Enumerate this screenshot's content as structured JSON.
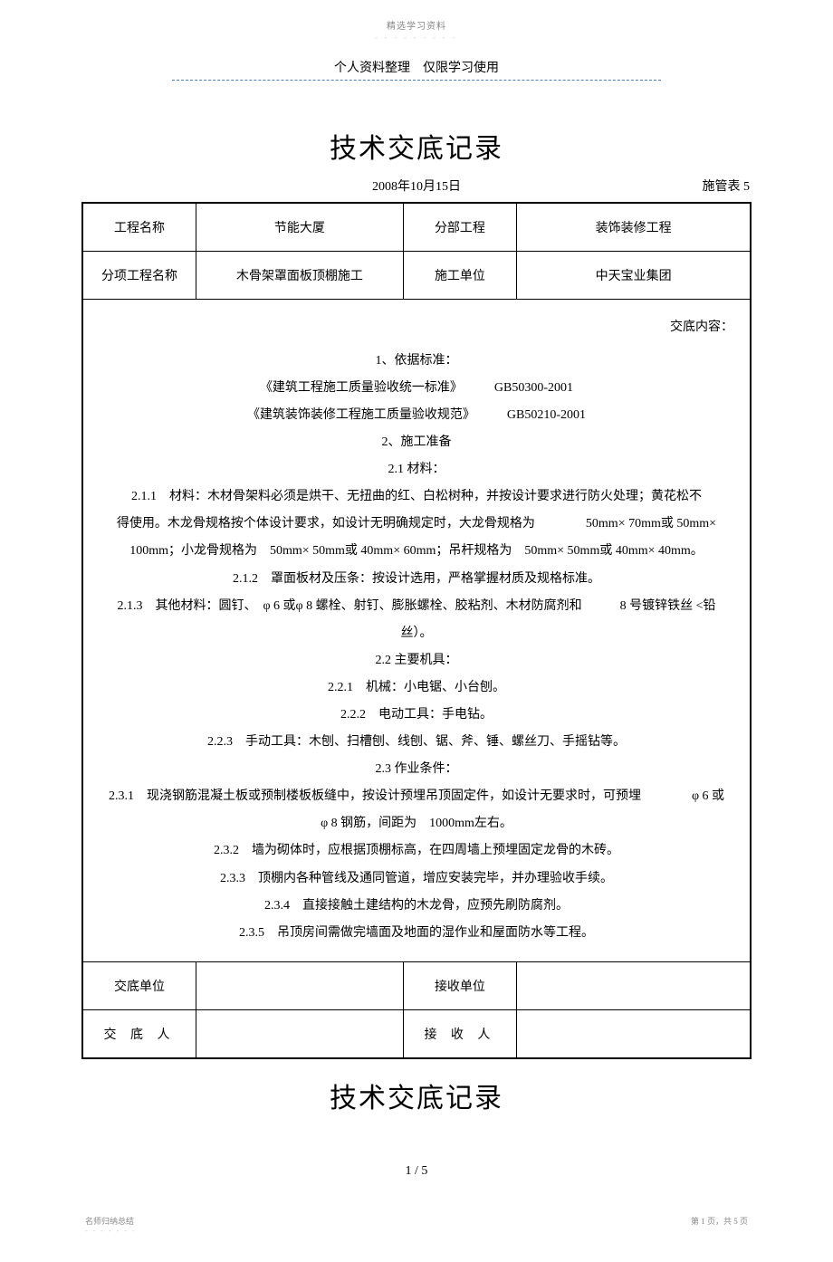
{
  "header": {
    "top_label": "精选学习资料",
    "dots": "- - - - - - - - -",
    "personal_note": "个人资料整理　仅限学习使用"
  },
  "main_title": "技术交底记录",
  "date_line": "2008年10月15日",
  "form_number": "施管表  5",
  "info_row1": {
    "label1": "工程名称",
    "value1": "节能大厦",
    "label2": "分部工程",
    "value2": "装饰装修工程"
  },
  "info_row2": {
    "label1": "分项工程名称",
    "value1": "木骨架罩面板顶棚施工",
    "label2": "施工单位",
    "value2": "中天宝业集团"
  },
  "content_label": "交底内容：",
  "content_lines": [
    "1、依据标准：",
    "《建筑工程施工质量验收统一标准》　　　GB50300-2001",
    "《建筑装饰装修工程施工质量验收规范》　　　GB50210-2001",
    "2、施工准备",
    "2.1  材料：",
    "2.1.1　材料：木材骨架料必须是烘干、无扭曲的红、白松树种，并按设计要求进行防火处理；黄花松不",
    "得使用。木龙骨规格按个体设计要求，如设计无明确规定时，大龙骨规格为　　　　50mm× 70mm或 50mm×",
    "100mm；小龙骨规格为　50mm× 50mm或 40mm× 60mm；吊杆规格为　50mm× 50mm或 40mm× 40mm。",
    "2.1.2　罩面板材及压条：按设计选用，严格掌握材质及规格标准。",
    "2.1.3　其他材料：圆钉、　φ 6 或φ 8 螺栓、射钉、膨胀螺栓、胶粘剂、木材防腐剂和　　　8 号镀锌铁丝 <铅",
    "丝）。",
    "2.2  主要机具：",
    "2.2.1　机械：小电锯、小台刨。",
    "2.2.2　电动工具：手电钻。",
    "2.2.3　手动工具：木刨、扫槽刨、线刨、锯、斧、锤、螺丝刀、手摇钻等。",
    "2.3  作业条件：",
    "2.3.1　现浇钢筋混凝土板或预制楼板板缝中，按设计预埋吊顶固定件，如设计无要求时，可预埋　　　　φ 6 或",
    "φ 8 钢筋，间距为　1000mm左右。",
    "2.3.2　墙为砌体时，应根据顶棚标高，在四周墙上预埋固定龙骨的木砖。",
    "2.3.3　顶棚内各种管线及通同管道，增应安装完毕，并办理验收手续。",
    "2.3.4　直接接触土建结构的木龙骨，应预先刷防腐剂。",
    "2.3.5　吊顶房间需做完墙面及地面的湿作业和屋面防水等工程。"
  ],
  "sig_row1": {
    "label1": "交底单位",
    "value1": "",
    "label2": "接收单位",
    "value2": ""
  },
  "sig_row2": {
    "label1": "交 底 人",
    "value1": "",
    "label2": "接 收 人",
    "value2": ""
  },
  "sub_title": "技术交底记录",
  "page_num": "1 / 5",
  "footer": {
    "left": "名师归纳总结",
    "left_dots": "- - - - - - -",
    "right": "第 1 页，共 5 页"
  },
  "colors": {
    "text": "#000000",
    "background": "#ffffff",
    "border": "#000000",
    "dash": "#4a7fb8",
    "muted": "#888888"
  }
}
